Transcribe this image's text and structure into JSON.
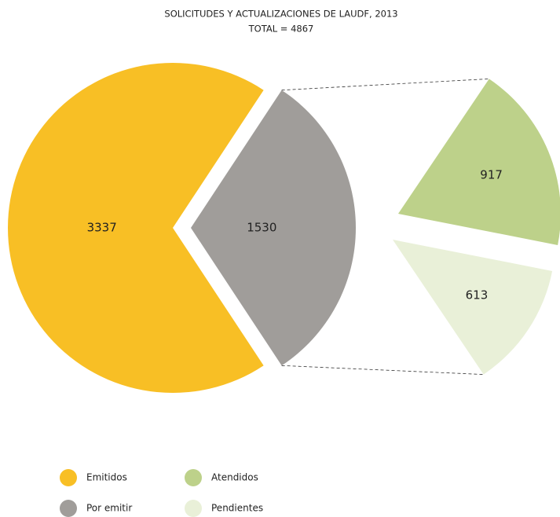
{
  "chart_data": [
    {
      "type": "pie",
      "title": "SOLICITUDES Y ACTUALIZACIONES DE LAUDF, 2013",
      "subtitle": "TOTAL = 4867",
      "categories": [
        "Emitidos",
        "Por emitir"
      ],
      "values": [
        3337,
        1530
      ],
      "colors": [
        "#f8bf25",
        "#a09d9a"
      ]
    },
    {
      "type": "pie",
      "categories": [
        "Atendidos",
        "Pendientes"
      ],
      "values": [
        917,
        613
      ],
      "colors": [
        "#bdd18a",
        "#e9f0d8"
      ]
    }
  ]
}
